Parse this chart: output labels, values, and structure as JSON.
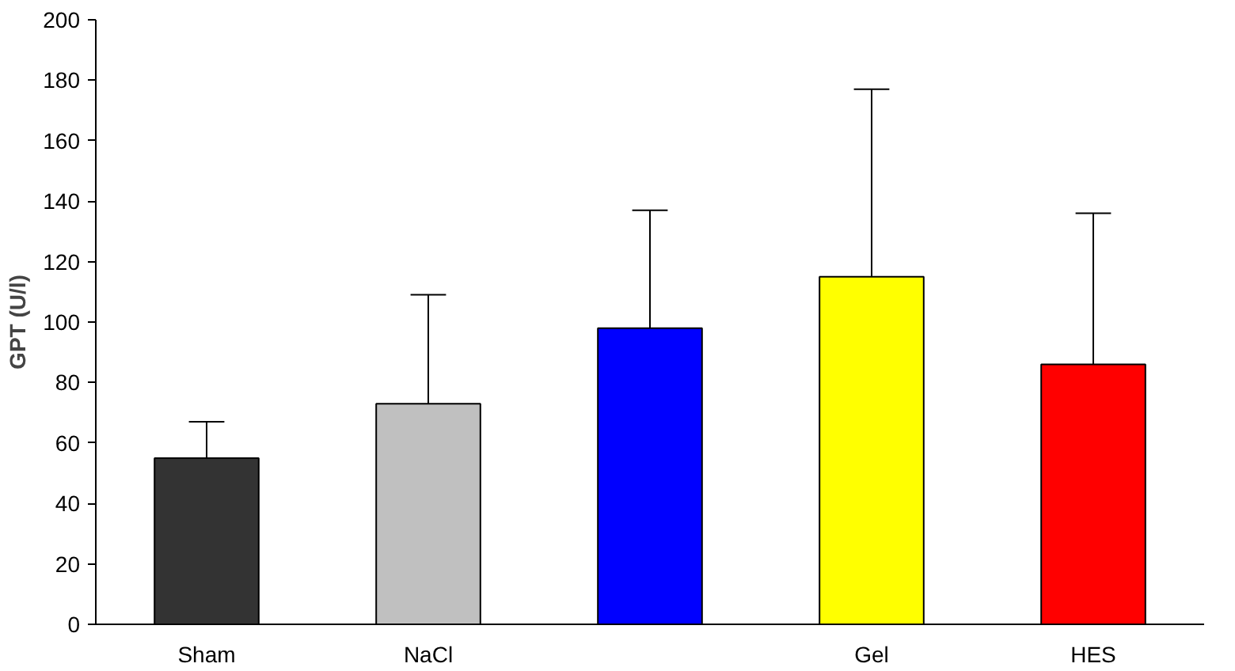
{
  "chart_data": {
    "type": "bar",
    "ylabel": "GPT (U/l)",
    "categories": [
      "Sham",
      "NaCl",
      null,
      "Gel",
      "HES"
    ],
    "values": [
      55,
      73,
      98,
      115,
      86
    ],
    "colors": [
      "#333333",
      "#c0c0c0",
      "#0000ff",
      "#ffff00",
      "#ff0000"
    ],
    "errors": [
      [
        55,
        67
      ],
      [
        73,
        109
      ],
      [
        98,
        137
      ],
      [
        115,
        177
      ],
      [
        86,
        136
      ]
    ],
    "ylim": [
      0,
      200
    ],
    "yticks": [
      0,
      20,
      40,
      60,
      80,
      100,
      120,
      140,
      160,
      180,
      200
    ],
    "grid": false
  }
}
